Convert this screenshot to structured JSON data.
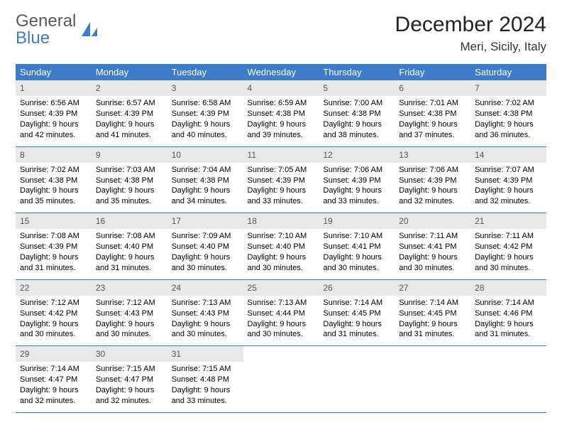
{
  "logo": {
    "word1": "General",
    "word2": "Blue"
  },
  "title": "December 2024",
  "location": "Meri, Sicily, Italy",
  "colors": {
    "header_bg": "#3d7cc9",
    "header_text": "#ffffff",
    "daynum_bg": "#e8e8e8",
    "daynum_text": "#555555",
    "rule": "#3d7cc9",
    "logo_gray": "#5a5a5a",
    "logo_blue": "#3d7cc9",
    "page_bg": "#ffffff"
  },
  "typography": {
    "title_fontsize": 30,
    "location_fontsize": 17,
    "dayhead_fontsize": 13,
    "daynum_fontsize": 12,
    "body_fontsize": 11
  },
  "dayNames": [
    "Sunday",
    "Monday",
    "Tuesday",
    "Wednesday",
    "Thursday",
    "Friday",
    "Saturday"
  ],
  "weeks": [
    [
      {
        "n": "1",
        "sr": "Sunrise: 6:56 AM",
        "ss": "Sunset: 4:39 PM",
        "d1": "Daylight: 9 hours",
        "d2": "and 42 minutes."
      },
      {
        "n": "2",
        "sr": "Sunrise: 6:57 AM",
        "ss": "Sunset: 4:39 PM",
        "d1": "Daylight: 9 hours",
        "d2": "and 41 minutes."
      },
      {
        "n": "3",
        "sr": "Sunrise: 6:58 AM",
        "ss": "Sunset: 4:39 PM",
        "d1": "Daylight: 9 hours",
        "d2": "and 40 minutes."
      },
      {
        "n": "4",
        "sr": "Sunrise: 6:59 AM",
        "ss": "Sunset: 4:38 PM",
        "d1": "Daylight: 9 hours",
        "d2": "and 39 minutes."
      },
      {
        "n": "5",
        "sr": "Sunrise: 7:00 AM",
        "ss": "Sunset: 4:38 PM",
        "d1": "Daylight: 9 hours",
        "d2": "and 38 minutes."
      },
      {
        "n": "6",
        "sr": "Sunrise: 7:01 AM",
        "ss": "Sunset: 4:38 PM",
        "d1": "Daylight: 9 hours",
        "d2": "and 37 minutes."
      },
      {
        "n": "7",
        "sr": "Sunrise: 7:02 AM",
        "ss": "Sunset: 4:38 PM",
        "d1": "Daylight: 9 hours",
        "d2": "and 36 minutes."
      }
    ],
    [
      {
        "n": "8",
        "sr": "Sunrise: 7:02 AM",
        "ss": "Sunset: 4:38 PM",
        "d1": "Daylight: 9 hours",
        "d2": "and 35 minutes."
      },
      {
        "n": "9",
        "sr": "Sunrise: 7:03 AM",
        "ss": "Sunset: 4:38 PM",
        "d1": "Daylight: 9 hours",
        "d2": "and 35 minutes."
      },
      {
        "n": "10",
        "sr": "Sunrise: 7:04 AM",
        "ss": "Sunset: 4:38 PM",
        "d1": "Daylight: 9 hours",
        "d2": "and 34 minutes."
      },
      {
        "n": "11",
        "sr": "Sunrise: 7:05 AM",
        "ss": "Sunset: 4:39 PM",
        "d1": "Daylight: 9 hours",
        "d2": "and 33 minutes."
      },
      {
        "n": "12",
        "sr": "Sunrise: 7:06 AM",
        "ss": "Sunset: 4:39 PM",
        "d1": "Daylight: 9 hours",
        "d2": "and 33 minutes."
      },
      {
        "n": "13",
        "sr": "Sunrise: 7:06 AM",
        "ss": "Sunset: 4:39 PM",
        "d1": "Daylight: 9 hours",
        "d2": "and 32 minutes."
      },
      {
        "n": "14",
        "sr": "Sunrise: 7:07 AM",
        "ss": "Sunset: 4:39 PM",
        "d1": "Daylight: 9 hours",
        "d2": "and 32 minutes."
      }
    ],
    [
      {
        "n": "15",
        "sr": "Sunrise: 7:08 AM",
        "ss": "Sunset: 4:39 PM",
        "d1": "Daylight: 9 hours",
        "d2": "and 31 minutes."
      },
      {
        "n": "16",
        "sr": "Sunrise: 7:08 AM",
        "ss": "Sunset: 4:40 PM",
        "d1": "Daylight: 9 hours",
        "d2": "and 31 minutes."
      },
      {
        "n": "17",
        "sr": "Sunrise: 7:09 AM",
        "ss": "Sunset: 4:40 PM",
        "d1": "Daylight: 9 hours",
        "d2": "and 30 minutes."
      },
      {
        "n": "18",
        "sr": "Sunrise: 7:10 AM",
        "ss": "Sunset: 4:40 PM",
        "d1": "Daylight: 9 hours",
        "d2": "and 30 minutes."
      },
      {
        "n": "19",
        "sr": "Sunrise: 7:10 AM",
        "ss": "Sunset: 4:41 PM",
        "d1": "Daylight: 9 hours",
        "d2": "and 30 minutes."
      },
      {
        "n": "20",
        "sr": "Sunrise: 7:11 AM",
        "ss": "Sunset: 4:41 PM",
        "d1": "Daylight: 9 hours",
        "d2": "and 30 minutes."
      },
      {
        "n": "21",
        "sr": "Sunrise: 7:11 AM",
        "ss": "Sunset: 4:42 PM",
        "d1": "Daylight: 9 hours",
        "d2": "and 30 minutes."
      }
    ],
    [
      {
        "n": "22",
        "sr": "Sunrise: 7:12 AM",
        "ss": "Sunset: 4:42 PM",
        "d1": "Daylight: 9 hours",
        "d2": "and 30 minutes."
      },
      {
        "n": "23",
        "sr": "Sunrise: 7:12 AM",
        "ss": "Sunset: 4:43 PM",
        "d1": "Daylight: 9 hours",
        "d2": "and 30 minutes."
      },
      {
        "n": "24",
        "sr": "Sunrise: 7:13 AM",
        "ss": "Sunset: 4:43 PM",
        "d1": "Daylight: 9 hours",
        "d2": "and 30 minutes."
      },
      {
        "n": "25",
        "sr": "Sunrise: 7:13 AM",
        "ss": "Sunset: 4:44 PM",
        "d1": "Daylight: 9 hours",
        "d2": "and 30 minutes."
      },
      {
        "n": "26",
        "sr": "Sunrise: 7:14 AM",
        "ss": "Sunset: 4:45 PM",
        "d1": "Daylight: 9 hours",
        "d2": "and 31 minutes."
      },
      {
        "n": "27",
        "sr": "Sunrise: 7:14 AM",
        "ss": "Sunset: 4:45 PM",
        "d1": "Daylight: 9 hours",
        "d2": "and 31 minutes."
      },
      {
        "n": "28",
        "sr": "Sunrise: 7:14 AM",
        "ss": "Sunset: 4:46 PM",
        "d1": "Daylight: 9 hours",
        "d2": "and 31 minutes."
      }
    ],
    [
      {
        "n": "29",
        "sr": "Sunrise: 7:14 AM",
        "ss": "Sunset: 4:47 PM",
        "d1": "Daylight: 9 hours",
        "d2": "and 32 minutes."
      },
      {
        "n": "30",
        "sr": "Sunrise: 7:15 AM",
        "ss": "Sunset: 4:47 PM",
        "d1": "Daylight: 9 hours",
        "d2": "and 32 minutes."
      },
      {
        "n": "31",
        "sr": "Sunrise: 7:15 AM",
        "ss": "Sunset: 4:48 PM",
        "d1": "Daylight: 9 hours",
        "d2": "and 33 minutes."
      },
      {
        "n": "",
        "sr": "",
        "ss": "",
        "d1": "",
        "d2": ""
      },
      {
        "n": "",
        "sr": "",
        "ss": "",
        "d1": "",
        "d2": ""
      },
      {
        "n": "",
        "sr": "",
        "ss": "",
        "d1": "",
        "d2": ""
      },
      {
        "n": "",
        "sr": "",
        "ss": "",
        "d1": "",
        "d2": ""
      }
    ]
  ]
}
